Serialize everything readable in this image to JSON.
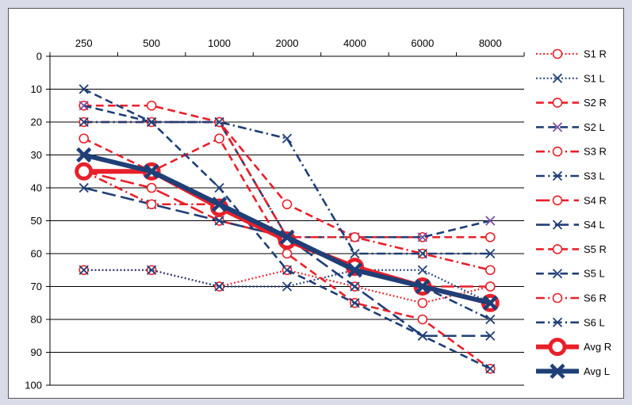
{
  "chart_data": {
    "type": "line",
    "title": "",
    "xlabel": "",
    "ylabel": "",
    "x_position": "top",
    "y_inverted": true,
    "grid": "horizontal",
    "legend_position": "right",
    "x": [
      "250",
      "500",
      "1000",
      "2000",
      "4000",
      "6000",
      "8000"
    ],
    "y_ticks": [
      "0",
      "10",
      "20",
      "30",
      "40",
      "50",
      "60",
      "70",
      "80",
      "90",
      "100"
    ],
    "ylim": [
      0,
      100
    ],
    "colors": {
      "right": "#e8202a",
      "left": "#1f3f77",
      "s2_left_marker": "#7a4fa0"
    },
    "series": [
      {
        "name": "S1 R",
        "ear": "R",
        "dash": "dot",
        "marker": "o",
        "width": 2.2,
        "values": [
          65,
          65,
          70,
          65,
          70,
          75,
          70
        ]
      },
      {
        "name": "S1 L",
        "ear": "L",
        "dash": "dot",
        "marker": "x",
        "width": 2.2,
        "values": [
          65,
          65,
          70,
          70,
          65,
          65,
          75
        ]
      },
      {
        "name": "S2 R",
        "ear": "R",
        "dash": "dash",
        "marker": "o",
        "width": 2.6,
        "values": [
          15,
          15,
          20,
          45,
          55,
          55,
          55
        ]
      },
      {
        "name": "S2 L",
        "ear": "L",
        "dash": "dash",
        "marker": "x",
        "markerColor": "#7a4fa0",
        "width": 2.6,
        "values": [
          15,
          20,
          20,
          55,
          55,
          55,
          50
        ]
      },
      {
        "name": "S3 R",
        "ear": "R",
        "dash": "dashdot",
        "marker": "o",
        "width": 2.6,
        "values": [
          20,
          20,
          20,
          55,
          55,
          60,
          65
        ]
      },
      {
        "name": "S3 L",
        "ear": "L",
        "dash": "dashdot",
        "marker": "x",
        "width": 2.6,
        "values": [
          20,
          20,
          20,
          25,
          60,
          60,
          60
        ]
      },
      {
        "name": "S4 R",
        "ear": "R",
        "dash": "longdash",
        "marker": "o",
        "width": 2.6,
        "values": [
          35,
          40,
          50,
          55,
          65,
          70,
          70
        ]
      },
      {
        "name": "S4 L",
        "ear": "L",
        "dash": "longdash",
        "marker": "x",
        "width": 2.6,
        "values": [
          40,
          45,
          50,
          55,
          70,
          85,
          85
        ]
      },
      {
        "name": "S5 R",
        "ear": "R",
        "dash": "dash",
        "marker": "o",
        "width": 2.6,
        "values": [
          25,
          35,
          25,
          60,
          75,
          80,
          95
        ]
      },
      {
        "name": "S5 L",
        "ear": "L",
        "dash": "dash",
        "marker": "x",
        "width": 2.6,
        "values": [
          10,
          20,
          40,
          65,
          75,
          85,
          95
        ]
      },
      {
        "name": "S6 R",
        "ear": "R",
        "dash": "dashdot",
        "marker": "o",
        "width": 2.6,
        "values": [
          35,
          45,
          45,
          55,
          65,
          70,
          75
        ]
      },
      {
        "name": "S6 L",
        "ear": "L",
        "dash": "dashdot",
        "marker": "x",
        "width": 2.6,
        "values": [
          30,
          35,
          45,
          55,
          65,
          70,
          80
        ]
      },
      {
        "name": "Avg R",
        "ear": "R",
        "dash": "solid",
        "marker": "O",
        "width": 6,
        "values": [
          35,
          35,
          46,
          56,
          64,
          70,
          75
        ]
      },
      {
        "name": "Avg L",
        "ear": "L",
        "dash": "solid",
        "marker": "X",
        "width": 6,
        "values": [
          30,
          35,
          45,
          55,
          65,
          70,
          75
        ]
      }
    ]
  }
}
